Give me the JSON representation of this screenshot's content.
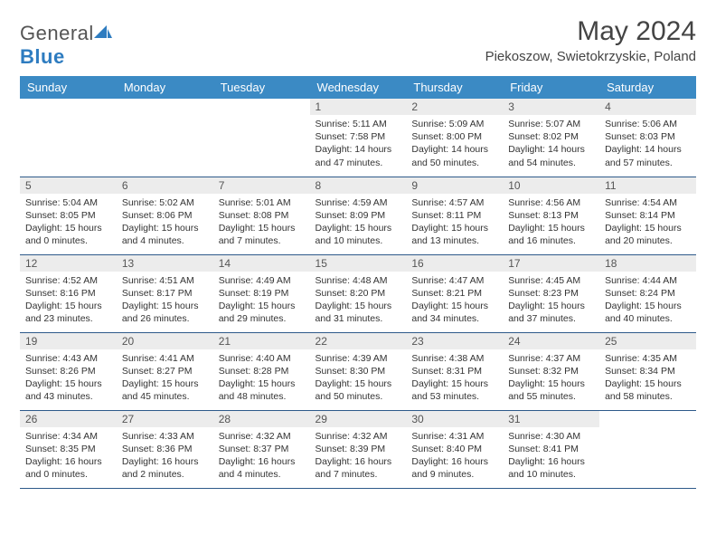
{
  "logo": {
    "text_gray": "General",
    "text_blue": "Blue"
  },
  "header": {
    "month_title": "May 2024",
    "location": "Piekoszow, Swietokrzyskie, Poland"
  },
  "colors": {
    "header_bg": "#3b8ac4",
    "header_text": "#ffffff",
    "daynum_bg": "#ececec",
    "cell_border": "#2e5a8a",
    "logo_blue": "#2e7cc0"
  },
  "day_headers": [
    "Sunday",
    "Monday",
    "Tuesday",
    "Wednesday",
    "Thursday",
    "Friday",
    "Saturday"
  ],
  "weeks": [
    [
      {
        "empty": true
      },
      {
        "empty": true
      },
      {
        "empty": true
      },
      {
        "num": "1",
        "sunrise": "Sunrise: 5:11 AM",
        "sunset": "Sunset: 7:58 PM",
        "dl1": "Daylight: 14 hours",
        "dl2": "and 47 minutes."
      },
      {
        "num": "2",
        "sunrise": "Sunrise: 5:09 AM",
        "sunset": "Sunset: 8:00 PM",
        "dl1": "Daylight: 14 hours",
        "dl2": "and 50 minutes."
      },
      {
        "num": "3",
        "sunrise": "Sunrise: 5:07 AM",
        "sunset": "Sunset: 8:02 PM",
        "dl1": "Daylight: 14 hours",
        "dl2": "and 54 minutes."
      },
      {
        "num": "4",
        "sunrise": "Sunrise: 5:06 AM",
        "sunset": "Sunset: 8:03 PM",
        "dl1": "Daylight: 14 hours",
        "dl2": "and 57 minutes."
      }
    ],
    [
      {
        "num": "5",
        "sunrise": "Sunrise: 5:04 AM",
        "sunset": "Sunset: 8:05 PM",
        "dl1": "Daylight: 15 hours",
        "dl2": "and 0 minutes."
      },
      {
        "num": "6",
        "sunrise": "Sunrise: 5:02 AM",
        "sunset": "Sunset: 8:06 PM",
        "dl1": "Daylight: 15 hours",
        "dl2": "and 4 minutes."
      },
      {
        "num": "7",
        "sunrise": "Sunrise: 5:01 AM",
        "sunset": "Sunset: 8:08 PM",
        "dl1": "Daylight: 15 hours",
        "dl2": "and 7 minutes."
      },
      {
        "num": "8",
        "sunrise": "Sunrise: 4:59 AM",
        "sunset": "Sunset: 8:09 PM",
        "dl1": "Daylight: 15 hours",
        "dl2": "and 10 minutes."
      },
      {
        "num": "9",
        "sunrise": "Sunrise: 4:57 AM",
        "sunset": "Sunset: 8:11 PM",
        "dl1": "Daylight: 15 hours",
        "dl2": "and 13 minutes."
      },
      {
        "num": "10",
        "sunrise": "Sunrise: 4:56 AM",
        "sunset": "Sunset: 8:13 PM",
        "dl1": "Daylight: 15 hours",
        "dl2": "and 16 minutes."
      },
      {
        "num": "11",
        "sunrise": "Sunrise: 4:54 AM",
        "sunset": "Sunset: 8:14 PM",
        "dl1": "Daylight: 15 hours",
        "dl2": "and 20 minutes."
      }
    ],
    [
      {
        "num": "12",
        "sunrise": "Sunrise: 4:52 AM",
        "sunset": "Sunset: 8:16 PM",
        "dl1": "Daylight: 15 hours",
        "dl2": "and 23 minutes."
      },
      {
        "num": "13",
        "sunrise": "Sunrise: 4:51 AM",
        "sunset": "Sunset: 8:17 PM",
        "dl1": "Daylight: 15 hours",
        "dl2": "and 26 minutes."
      },
      {
        "num": "14",
        "sunrise": "Sunrise: 4:49 AM",
        "sunset": "Sunset: 8:19 PM",
        "dl1": "Daylight: 15 hours",
        "dl2": "and 29 minutes."
      },
      {
        "num": "15",
        "sunrise": "Sunrise: 4:48 AM",
        "sunset": "Sunset: 8:20 PM",
        "dl1": "Daylight: 15 hours",
        "dl2": "and 31 minutes."
      },
      {
        "num": "16",
        "sunrise": "Sunrise: 4:47 AM",
        "sunset": "Sunset: 8:21 PM",
        "dl1": "Daylight: 15 hours",
        "dl2": "and 34 minutes."
      },
      {
        "num": "17",
        "sunrise": "Sunrise: 4:45 AM",
        "sunset": "Sunset: 8:23 PM",
        "dl1": "Daylight: 15 hours",
        "dl2": "and 37 minutes."
      },
      {
        "num": "18",
        "sunrise": "Sunrise: 4:44 AM",
        "sunset": "Sunset: 8:24 PM",
        "dl1": "Daylight: 15 hours",
        "dl2": "and 40 minutes."
      }
    ],
    [
      {
        "num": "19",
        "sunrise": "Sunrise: 4:43 AM",
        "sunset": "Sunset: 8:26 PM",
        "dl1": "Daylight: 15 hours",
        "dl2": "and 43 minutes."
      },
      {
        "num": "20",
        "sunrise": "Sunrise: 4:41 AM",
        "sunset": "Sunset: 8:27 PM",
        "dl1": "Daylight: 15 hours",
        "dl2": "and 45 minutes."
      },
      {
        "num": "21",
        "sunrise": "Sunrise: 4:40 AM",
        "sunset": "Sunset: 8:28 PM",
        "dl1": "Daylight: 15 hours",
        "dl2": "and 48 minutes."
      },
      {
        "num": "22",
        "sunrise": "Sunrise: 4:39 AM",
        "sunset": "Sunset: 8:30 PM",
        "dl1": "Daylight: 15 hours",
        "dl2": "and 50 minutes."
      },
      {
        "num": "23",
        "sunrise": "Sunrise: 4:38 AM",
        "sunset": "Sunset: 8:31 PM",
        "dl1": "Daylight: 15 hours",
        "dl2": "and 53 minutes."
      },
      {
        "num": "24",
        "sunrise": "Sunrise: 4:37 AM",
        "sunset": "Sunset: 8:32 PM",
        "dl1": "Daylight: 15 hours",
        "dl2": "and 55 minutes."
      },
      {
        "num": "25",
        "sunrise": "Sunrise: 4:35 AM",
        "sunset": "Sunset: 8:34 PM",
        "dl1": "Daylight: 15 hours",
        "dl2": "and 58 minutes."
      }
    ],
    [
      {
        "num": "26",
        "sunrise": "Sunrise: 4:34 AM",
        "sunset": "Sunset: 8:35 PM",
        "dl1": "Daylight: 16 hours",
        "dl2": "and 0 minutes."
      },
      {
        "num": "27",
        "sunrise": "Sunrise: 4:33 AM",
        "sunset": "Sunset: 8:36 PM",
        "dl1": "Daylight: 16 hours",
        "dl2": "and 2 minutes."
      },
      {
        "num": "28",
        "sunrise": "Sunrise: 4:32 AM",
        "sunset": "Sunset: 8:37 PM",
        "dl1": "Daylight: 16 hours",
        "dl2": "and 4 minutes."
      },
      {
        "num": "29",
        "sunrise": "Sunrise: 4:32 AM",
        "sunset": "Sunset: 8:39 PM",
        "dl1": "Daylight: 16 hours",
        "dl2": "and 7 minutes."
      },
      {
        "num": "30",
        "sunrise": "Sunrise: 4:31 AM",
        "sunset": "Sunset: 8:40 PM",
        "dl1": "Daylight: 16 hours",
        "dl2": "and 9 minutes."
      },
      {
        "num": "31",
        "sunrise": "Sunrise: 4:30 AM",
        "sunset": "Sunset: 8:41 PM",
        "dl1": "Daylight: 16 hours",
        "dl2": "and 10 minutes."
      },
      {
        "empty": true
      }
    ]
  ]
}
